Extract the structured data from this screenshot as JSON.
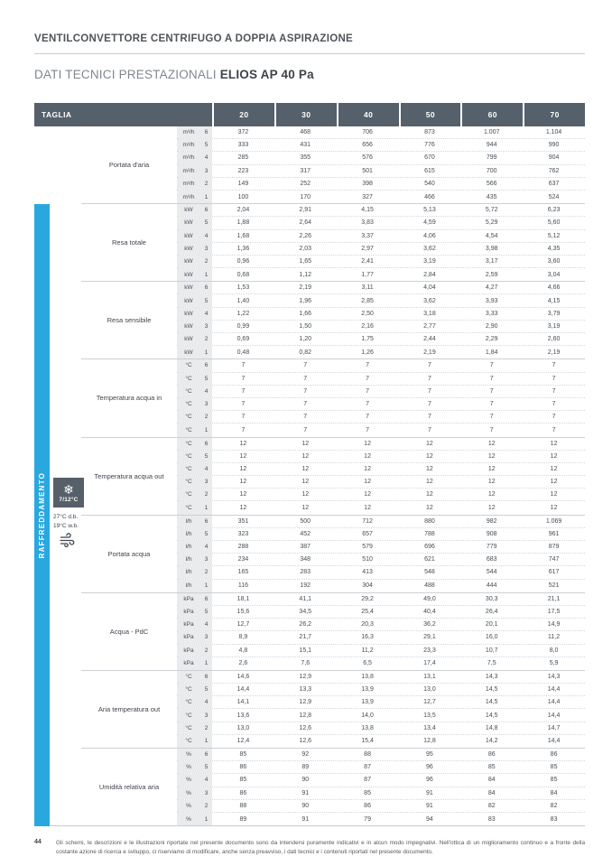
{
  "page": {
    "title": "VENTILCONVETTORE CENTRIFUGO A DOPPIA ASPIRAZIONE",
    "subtitle_prefix": "DATI TECNICI PRESTAZIONALI",
    "subtitle_model": "ELIOS AP 40 Pa"
  },
  "colors": {
    "accent_blue": "#29a8e0",
    "header_dark": "#56606a",
    "unit_column_bg": "#e9ebed"
  },
  "table": {
    "header": {
      "label": "TAGLIA",
      "sizes": [
        "20",
        "30",
        "40",
        "50",
        "60",
        "70"
      ]
    },
    "sidebar": {
      "label": "RAFFREDDAMENTO",
      "icon": "snowflake-icon",
      "snowflake_glyph": "❄",
      "badge_temp": "7/12°C",
      "condition_db": "27°C d.b.",
      "condition_wb": "19°C w.b.",
      "wind_icon": "air-flow-icon"
    },
    "speeds": [
      "6",
      "5",
      "4",
      "3",
      "2",
      "1"
    ],
    "groups": [
      {
        "label": "Portata d'aria",
        "unit": "m³/h",
        "rows": [
          [
            "372",
            "468",
            "706",
            "873",
            "1.007",
            "1.104"
          ],
          [
            "333",
            "431",
            "656",
            "776",
            "944",
            "990"
          ],
          [
            "285",
            "355",
            "576",
            "670",
            "799",
            "904"
          ],
          [
            "223",
            "317",
            "501",
            "615",
            "700",
            "762"
          ],
          [
            "149",
            "252",
            "398",
            "540",
            "566",
            "637"
          ],
          [
            "100",
            "170",
            "327",
            "466",
            "435",
            "524"
          ]
        ]
      },
      {
        "label": "Resa totale",
        "unit": "kW",
        "rows": [
          [
            "2,04",
            "2,91",
            "4,15",
            "5,13",
            "5,72",
            "6,23"
          ],
          [
            "1,88",
            "2,64",
            "3,83",
            "4,59",
            "5,29",
            "5,60"
          ],
          [
            "1,68",
            "2,26",
            "3,37",
            "4,06",
            "4,54",
            "5,12"
          ],
          [
            "1,36",
            "2,03",
            "2,97",
            "3,62",
            "3,98",
            "4,35"
          ],
          [
            "0,96",
            "1,65",
            "2,41",
            "3,19",
            "3,17",
            "3,60"
          ],
          [
            "0,68",
            "1,12",
            "1,77",
            "2,84",
            "2,59",
            "3,04"
          ]
        ]
      },
      {
        "label": "Resa sensibile",
        "unit": "kW",
        "rows": [
          [
            "1,53",
            "2,19",
            "3,11",
            "4,04",
            "4,27",
            "4,66"
          ],
          [
            "1,40",
            "1,96",
            "2,85",
            "3,62",
            "3,93",
            "4,15"
          ],
          [
            "1,22",
            "1,66",
            "2,50",
            "3,18",
            "3,33",
            "3,79"
          ],
          [
            "0,99",
            "1,50",
            "2,16",
            "2,77",
            "2,90",
            "3,19"
          ],
          [
            "0,69",
            "1,20",
            "1,75",
            "2,44",
            "2,29",
            "2,60"
          ],
          [
            "0,48",
            "0,82",
            "1,26",
            "2,19",
            "1,84",
            "2,19"
          ]
        ]
      },
      {
        "label": "Temperatura acqua in",
        "unit": "°C",
        "rows": [
          [
            "7",
            "7",
            "7",
            "7",
            "7",
            "7"
          ],
          [
            "7",
            "7",
            "7",
            "7",
            "7",
            "7"
          ],
          [
            "7",
            "7",
            "7",
            "7",
            "7",
            "7"
          ],
          [
            "7",
            "7",
            "7",
            "7",
            "7",
            "7"
          ],
          [
            "7",
            "7",
            "7",
            "7",
            "7",
            "7"
          ],
          [
            "7",
            "7",
            "7",
            "7",
            "7",
            "7"
          ]
        ]
      },
      {
        "label": "Temperatura acqua out",
        "unit": "°C",
        "rows": [
          [
            "12",
            "12",
            "12",
            "12",
            "12",
            "12"
          ],
          [
            "12",
            "12",
            "12",
            "12",
            "12",
            "12"
          ],
          [
            "12",
            "12",
            "12",
            "12",
            "12",
            "12"
          ],
          [
            "12",
            "12",
            "12",
            "12",
            "12",
            "12"
          ],
          [
            "12",
            "12",
            "12",
            "12",
            "12",
            "12"
          ],
          [
            "12",
            "12",
            "12",
            "12",
            "12",
            "12"
          ]
        ]
      },
      {
        "label": "Portata acqua",
        "unit": "l/h",
        "rows": [
          [
            "351",
            "500",
            "712",
            "880",
            "982",
            "1.069"
          ],
          [
            "323",
            "452",
            "657",
            "788",
            "908",
            "961"
          ],
          [
            "288",
            "387",
            "579",
            "696",
            "779",
            "879"
          ],
          [
            "234",
            "348",
            "510",
            "621",
            "683",
            "747"
          ],
          [
            "165",
            "283",
            "413",
            "548",
            "544",
            "617"
          ],
          [
            "116",
            "192",
            "304",
            "488",
            "444",
            "521"
          ]
        ]
      },
      {
        "label": "Acqua - PdC",
        "unit": "kPa",
        "rows": [
          [
            "18,1",
            "41,1",
            "29,2",
            "49,0",
            "30,3",
            "21,1"
          ],
          [
            "15,6",
            "34,5",
            "25,4",
            "40,4",
            "26,4",
            "17,5"
          ],
          [
            "12,7",
            "26,2",
            "20,3",
            "36,2",
            "20,1",
            "14,9"
          ],
          [
            "8,9",
            "21,7",
            "16,3",
            "29,1",
            "16,0",
            "11,2"
          ],
          [
            "4,8",
            "15,1",
            "11,2",
            "23,3",
            "10,7",
            "8,0"
          ],
          [
            "2,6",
            "7,6",
            "6,5",
            "17,4",
            "7,5",
            "5,9"
          ]
        ]
      },
      {
        "label": "Aria temperatura out",
        "unit": "°C",
        "rows": [
          [
            "14,6",
            "12,9",
            "13,8",
            "13,1",
            "14,3",
            "14,3"
          ],
          [
            "14,4",
            "13,3",
            "13,9",
            "13,0",
            "14,5",
            "14,4"
          ],
          [
            "14,1",
            "12,9",
            "13,9",
            "12,7",
            "14,5",
            "14,4"
          ],
          [
            "13,6",
            "12,8",
            "14,0",
            "13,5",
            "14,5",
            "14,4"
          ],
          [
            "13,0",
            "12,6",
            "13,8",
            "13,4",
            "14,8",
            "14,7"
          ],
          [
            "12,4",
            "12,6",
            "15,4",
            "12,8",
            "14,2",
            "14,4"
          ]
        ]
      },
      {
        "label": "Umidità relativa aria",
        "unit": "%",
        "rows": [
          [
            "85",
            "92",
            "88",
            "95",
            "86",
            "86"
          ],
          [
            "86",
            "89",
            "87",
            "96",
            "85",
            "85"
          ],
          [
            "85",
            "90",
            "87",
            "96",
            "84",
            "85"
          ],
          [
            "86",
            "91",
            "85",
            "91",
            "84",
            "84"
          ],
          [
            "88",
            "90",
            "86",
            "91",
            "82",
            "82"
          ],
          [
            "89",
            "91",
            "79",
            "94",
            "83",
            "83"
          ]
        ]
      }
    ]
  },
  "footer": {
    "page_number": "44",
    "disclaimer": "Gli schemi, le descrizioni e le illustrazioni riportate nel presente documento sono da intendersi puramente indicativi e in alcun modo impegnativi. Nell'ottica di un miglioramento continuo e a fronte della costante azione di ricerca e sviluppo, ci riserviamo di modificare, anche senza preavviso, i dati tecnici e i contenuti riportati nel presente documento."
  }
}
